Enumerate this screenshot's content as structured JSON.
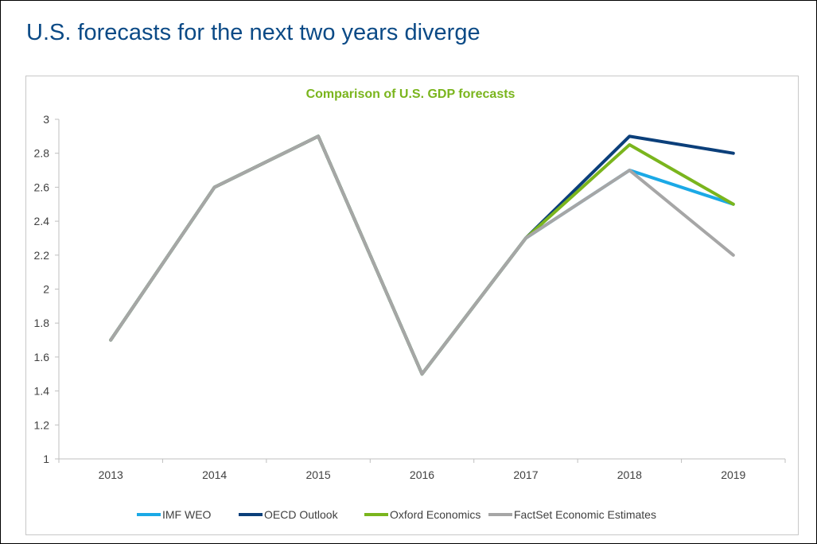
{
  "page": {
    "title": "U.S. forecasts for the next two years diverge"
  },
  "chart_data": {
    "type": "line",
    "title": "Comparison of U.S. GDP forecasts",
    "xlabel": "",
    "ylabel": "",
    "categories": [
      "2013",
      "2014",
      "2015",
      "2016",
      "2017",
      "2018",
      "2019"
    ],
    "ylim": [
      1,
      3
    ],
    "yticks": [
      1,
      1.2,
      1.4,
      1.6,
      1.8,
      2,
      2.2,
      2.4,
      2.6,
      2.8,
      3
    ],
    "grid": false,
    "legend_position": "bottom",
    "colors": {
      "title": "#7ab51d",
      "axis": "#bfbfbf",
      "tick_text": "#404040"
    },
    "series": [
      {
        "name": "IMF WEO",
        "color": "#1ba9e6",
        "values": [
          1.7,
          2.6,
          2.9,
          1.5,
          2.3,
          2.7,
          2.5
        ]
      },
      {
        "name": "OECD Outlook",
        "color": "#0b3f7a",
        "values": [
          1.7,
          2.6,
          2.9,
          1.5,
          2.3,
          2.9,
          2.8
        ]
      },
      {
        "name": "Oxford Economics",
        "color": "#7ab51d",
        "values": [
          1.7,
          2.6,
          2.9,
          1.5,
          2.3,
          2.85,
          2.5
        ]
      },
      {
        "name": "FactSet Economic Estimates",
        "color": "#a6a6a6",
        "values": [
          1.7,
          2.6,
          2.9,
          1.5,
          2.3,
          2.7,
          2.2
        ]
      }
    ]
  }
}
